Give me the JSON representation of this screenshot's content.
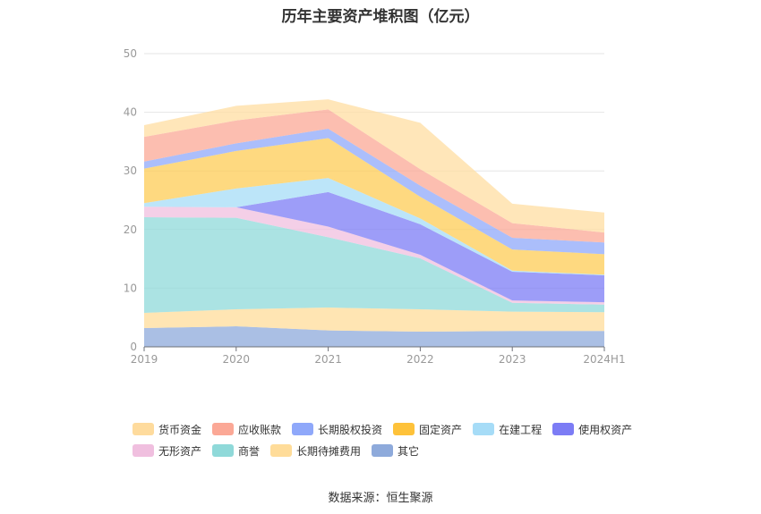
{
  "chart_data": {
    "type": "area",
    "stacked": true,
    "title": "历年主要资产堆积图（亿元）",
    "categories": [
      "2019",
      "2020",
      "2021",
      "2022",
      "2023",
      "2024H1"
    ],
    "y_ticks": [
      "0",
      "10",
      "20",
      "30",
      "40",
      "50"
    ],
    "ylim": [
      0,
      50
    ],
    "grid": true,
    "legend_position": "bottom",
    "series": [
      {
        "name": "其它",
        "color": "#8eaadb",
        "values": [
          3.2,
          3.5,
          2.8,
          2.6,
          2.7,
          2.7
        ]
      },
      {
        "name": "长期待摊费用",
        "color": "#ffdc99",
        "values": [
          2.6,
          2.9,
          3.9,
          3.8,
          3.3,
          3.2
        ]
      },
      {
        "name": "商誉",
        "color": "#8fd9d9",
        "values": [
          16.3,
          15.6,
          12.0,
          8.7,
          1.5,
          1.3
        ]
      },
      {
        "name": "无形资产",
        "color": "#f0bfdf",
        "values": [
          1.8,
          1.8,
          1.8,
          0.6,
          0.4,
          0.4
        ]
      },
      {
        "name": "使用权资产",
        "color": "#7c7cf5",
        "values": [
          0.0,
          0.0,
          5.9,
          5.2,
          4.9,
          4.6
        ]
      },
      {
        "name": "在建工程",
        "color": "#a6dcf7",
        "values": [
          0.6,
          3.2,
          2.4,
          1.0,
          0.2,
          0.1
        ]
      },
      {
        "name": "固定资产",
        "color": "#fecc55",
        "values": [
          5.9,
          6.4,
          6.8,
          3.7,
          3.6,
          3.5
        ]
      },
      {
        "name": "长期股权投资",
        "color": "#8fa8fa",
        "values": [
          1.2,
          1.3,
          1.6,
          1.9,
          2.0,
          2.0
        ]
      },
      {
        "name": "应收账款",
        "color": "#fba896",
        "values": [
          4.2,
          3.9,
          3.3,
          2.8,
          2.5,
          1.7
        ]
      },
      {
        "name": "货币资金",
        "color": "#ffdda2",
        "values": [
          2.0,
          2.5,
          1.7,
          7.9,
          3.3,
          3.4
        ]
      }
    ],
    "legend_order": [
      "货币资金",
      "应收账款",
      "长期股权投资",
      "固定资产",
      "在建工程",
      "使用权资产",
      "无形资产",
      "商誉",
      "长期待摊费用",
      "其它"
    ],
    "legend_colors": {
      "货币资金": "#fedb9d",
      "应收账款": "#fba896",
      "长期股权投资": "#8fa8fa",
      "固定资产": "#fec23a",
      "在建工程": "#a6dcf7",
      "使用权资产": "#7c7cf5",
      "无形资产": "#f0bfdf",
      "商誉": "#8fd9d9",
      "长期待摊费用": "#ffdc99",
      "其它": "#8eaadb"
    }
  },
  "source": "数据来源：恒生聚源"
}
